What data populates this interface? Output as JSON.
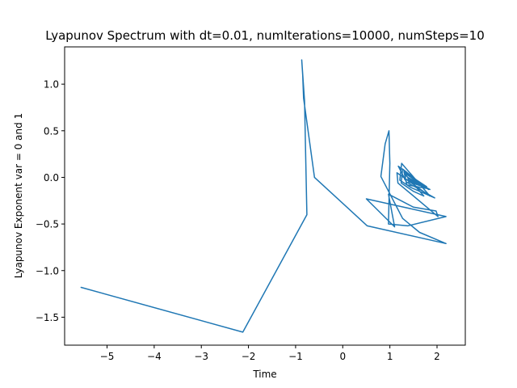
{
  "chart_data": {
    "type": "line",
    "title": "Lyapunov Spectrum with dt=0.01, numIterations=10000, numSteps=10",
    "xlabel": "Time",
    "ylabel": "Lyapunov Exponent var = 0 and 1",
    "xlim": [
      -5.9,
      2.6
    ],
    "ylim": [
      -1.8,
      1.4
    ],
    "xticks": [
      -5,
      -4,
      -3,
      -2,
      -1,
      0,
      1,
      2
    ],
    "xtick_labels": [
      "−5",
      "−4",
      "−3",
      "−2",
      "−1",
      "0",
      "1",
      "2"
    ],
    "yticks": [
      -1.5,
      -1.0,
      -0.5,
      0.0,
      0.5,
      1.0
    ],
    "ytick_labels": [
      "−1.5",
      "−1.0",
      "−0.5",
      "0.0",
      "0.5",
      "1.0"
    ],
    "grid": false,
    "series": [
      {
        "color": "#1f77b4",
        "x": [
          -5.55,
          -2.12,
          -0.76,
          -0.81,
          -0.87,
          -0.85,
          -0.83,
          -0.6,
          0.52,
          2.19,
          1.63,
          1.27,
          0.81,
          0.9,
          0.98,
          1.0,
          0.97,
          1.38,
          2.19,
          0.5,
          0.7,
          1.1,
          0.97,
          1.5,
          1.98,
          2.02,
          1.17,
          1.15,
          1.85,
          1.25,
          1.21,
          1.45,
          1.95,
          1.35,
          1.18,
          1.82,
          1.27,
          1.24,
          1.5,
          1.72,
          1.33,
          1.31,
          1.78,
          1.3,
          1.36,
          1.8,
          1.33,
          1.33,
          1.85,
          1.38,
          1.4,
          1.65,
          1.42,
          1.44,
          1.7,
          1.46,
          1.48
        ],
        "y": [
          -1.18,
          -1.66,
          -0.4,
          0.82,
          1.26,
          1.1,
          0.85,
          0.0,
          -0.52,
          -0.71,
          -0.59,
          -0.44,
          0.01,
          0.36,
          0.5,
          0.15,
          -0.5,
          -0.52,
          -0.42,
          -0.23,
          -0.33,
          -0.53,
          -0.18,
          -0.32,
          -0.36,
          -0.42,
          -0.06,
          0.05,
          -0.2,
          0.15,
          -0.03,
          -0.11,
          -0.22,
          -0.05,
          0.12,
          -0.13,
          0.09,
          -0.06,
          -0.15,
          -0.2,
          0.03,
          -0.02,
          -0.1,
          0.06,
          -0.08,
          -0.12,
          0.04,
          -0.02,
          -0.13,
          0.0,
          -0.05,
          -0.09,
          -0.01,
          -0.04,
          -0.08,
          -0.03,
          -0.06
        ]
      }
    ]
  }
}
